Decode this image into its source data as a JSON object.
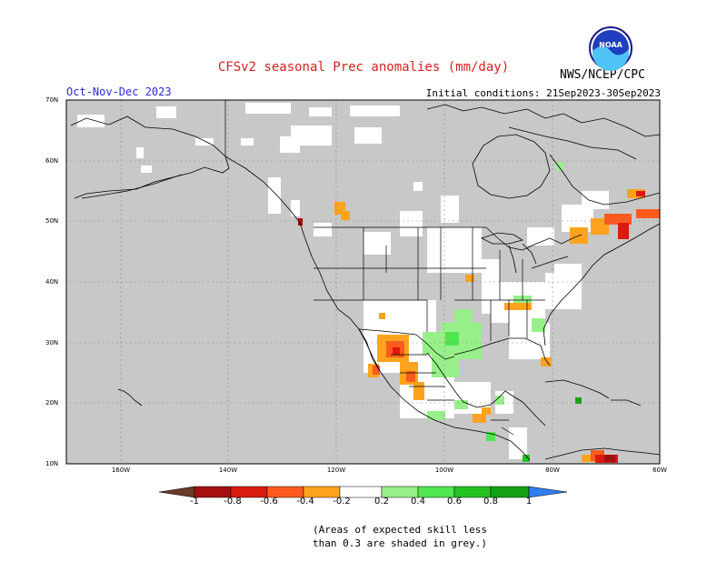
{
  "header": {
    "title": "CFSv2 seasonal Prec anomalies (mm/day)",
    "season": "Oct-Nov-Dec 2023",
    "initial_conditions": "Initial conditions: 21Sep2023-30Sep2023",
    "agency": "NWS/NCEP/CPC",
    "logo_text": "NOAA"
  },
  "map": {
    "lat_labels": [
      "70N",
      "60N",
      "50N",
      "40N",
      "30N",
      "20N",
      "10N"
    ],
    "lon_labels": [
      "160W",
      "140W",
      "120W",
      "100W",
      "80W",
      "60W"
    ]
  },
  "legend": {
    "labels": [
      "-1",
      "-0.8",
      "-0.6",
      "-0.4",
      "-0.2",
      "0.2",
      "0.4",
      "0.6",
      "0.8",
      "1"
    ],
    "colors": [
      "#6b3a2a",
      "#a50f0f",
      "#d81a0f",
      "#ff5a1e",
      "#ffa31e",
      "#ffffff",
      "#98f08a",
      "#50e650",
      "#22c322",
      "#13a213",
      "#2e7ef0"
    ]
  },
  "note": {
    "line1": "(Areas of expected skill less",
    "line2": "than 0.3 are shaded in grey.)"
  },
  "palette": {
    "skill_grey": "#c8c8c8",
    "border": "#000000",
    "title_red": "#d62020",
    "season_blue": "#2a2ad8"
  }
}
